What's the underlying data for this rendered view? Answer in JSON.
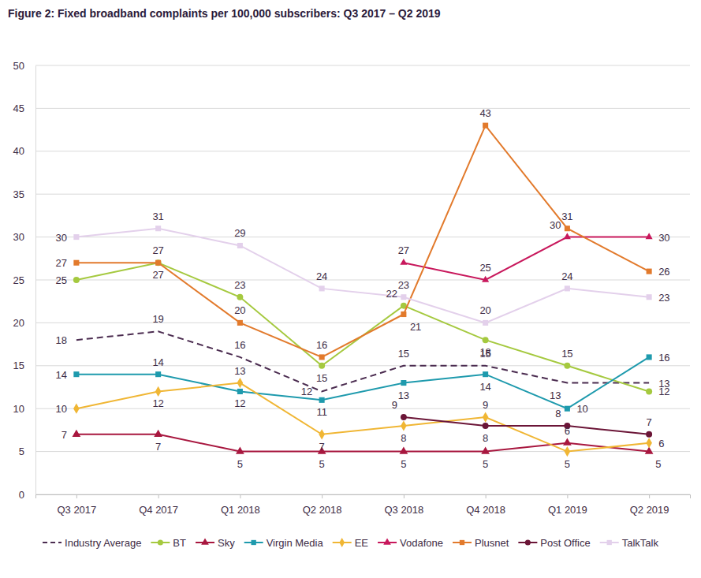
{
  "chart_data": {
    "type": "line",
    "title": "Figure 2: Fixed broadband complaints per 100,000 subscribers: Q3 2017 – Q2 2019",
    "categories": [
      "Q3 2017",
      "Q4 2017",
      "Q1 2018",
      "Q2 2018",
      "Q3 2018",
      "Q4 2018",
      "Q1 2019",
      "Q2 2019"
    ],
    "ylim": [
      0,
      50
    ],
    "yticks": [
      0,
      5,
      10,
      15,
      20,
      25,
      30,
      35,
      40,
      45,
      50
    ],
    "grid": true,
    "legend": "bottom",
    "data_labels": true,
    "series": [
      {
        "name": "Industry Average",
        "color": "#4b2c50",
        "marker": "none",
        "line_style": "dashed",
        "values": [
          18,
          19,
          16,
          12,
          15,
          15,
          13,
          13
        ]
      },
      {
        "name": "BT",
        "color": "#a5c93f",
        "marker": "circle",
        "line_style": "solid",
        "values": [
          25,
          27,
          23,
          15,
          22,
          18,
          15,
          12
        ]
      },
      {
        "name": "Sky",
        "color": "#a8173f",
        "marker": "triangle",
        "line_style": "solid",
        "values": [
          7,
          7,
          5,
          5,
          5,
          5,
          6,
          5
        ]
      },
      {
        "name": "Virgin Media",
        "color": "#1e9aad",
        "marker": "square",
        "line_style": "solid",
        "values": [
          14,
          14,
          12,
          11,
          13,
          14,
          10,
          16
        ]
      },
      {
        "name": "EE",
        "color": "#f0b634",
        "marker": "diamond",
        "line_style": "solid",
        "values": [
          10,
          12,
          13,
          7,
          8,
          9,
          5,
          6
        ]
      },
      {
        "name": "Vodafone",
        "color": "#c8185c",
        "marker": "triangle",
        "line_style": "solid",
        "values": [
          null,
          null,
          null,
          null,
          27,
          25,
          30,
          30
        ]
      },
      {
        "name": "Plusnet",
        "color": "#e27a2c",
        "marker": "square",
        "line_style": "solid",
        "values": [
          27,
          27,
          20,
          16,
          21,
          43,
          31,
          26
        ]
      },
      {
        "name": "Post Office",
        "color": "#6b1537",
        "marker": "circle",
        "line_style": "solid",
        "values": [
          null,
          null,
          null,
          null,
          9,
          8,
          8,
          7
        ]
      },
      {
        "name": "TalkTalk",
        "color": "#e3d0eb",
        "marker": "square",
        "line_style": "solid",
        "values": [
          30,
          31,
          29,
          24,
          23,
          20,
          24,
          23
        ]
      }
    ]
  }
}
